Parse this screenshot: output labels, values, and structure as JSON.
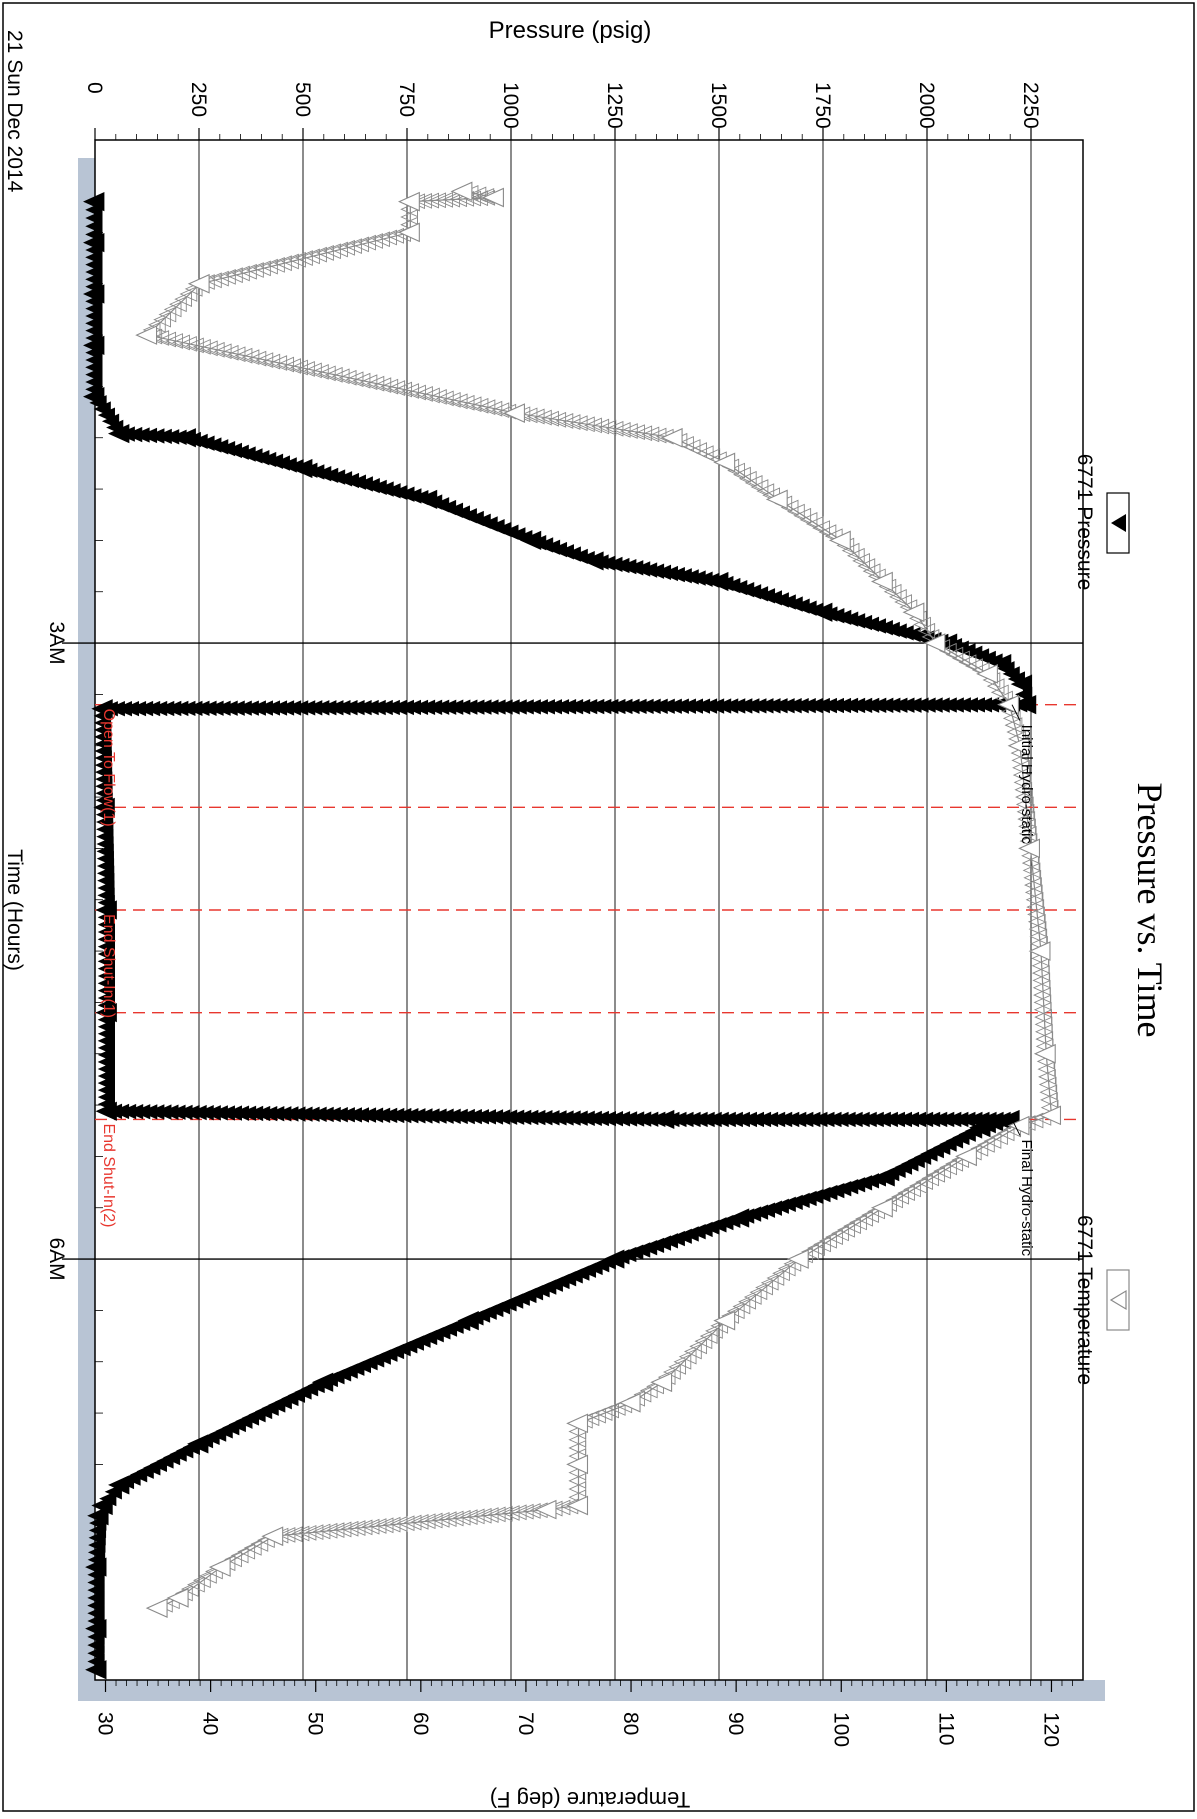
{
  "chart_data": {
    "type": "line",
    "title": "Pressure vs. Time",
    "date_label": "21 Sun Dec 2014",
    "xlabel": "Time (Hours)",
    "ylabel_left": "Pressure (psig)",
    "ylabel_right": "Temperature (deg F)",
    "x_ticks": [
      "3AM",
      "6AM"
    ],
    "pressure_ticks": [
      "0",
      "250",
      "500",
      "750",
      "1000",
      "1250",
      "1500",
      "1750",
      "2000",
      "2250"
    ],
    "temperature_ticks": [
      "30",
      "40",
      "50",
      "60",
      "70",
      "80",
      "90",
      "100",
      "110",
      "120"
    ],
    "pressure_range": [
      0,
      2375
    ],
    "temperature_range": [
      29,
      123
    ],
    "time_range": [
      0.55,
      8.05
    ],
    "grid": true,
    "legend": [
      {
        "name": "6771 Pressure",
        "marker": "filled-triangle",
        "color": "#000000",
        "position": "top-left"
      },
      {
        "name": "6771 Temperature",
        "marker": "open-triangle",
        "color": "#8a8a8a",
        "position": "top-right"
      }
    ],
    "event_lines": [
      {
        "x": 3.3,
        "label": "Open To Flow(1)"
      },
      {
        "x": 3.8,
        "label": ""
      },
      {
        "x": 4.3,
        "label": "End Shut-In(1)"
      },
      {
        "x": 4.8,
        "label": ""
      },
      {
        "x": 5.32,
        "label": "End Shut-In(2)"
      }
    ],
    "event_color": "#e8372f",
    "annotations": [
      {
        "text": "Initial Hydro-static",
        "x": 3.3
      },
      {
        "text": "Final Hydro-static",
        "x": 5.32
      }
    ],
    "series": [
      {
        "name": "6771 Pressure",
        "axis": "pressure",
        "color": "#000000",
        "x": [
          0.85,
          1.05,
          1.3,
          1.55,
          1.8,
          1.98,
          2.0,
          2.15,
          2.3,
          2.5,
          2.6,
          2.7,
          2.85,
          3.0,
          3.1,
          3.2,
          3.3,
          3.32,
          3.8,
          4.3,
          4.8,
          5.28,
          5.32,
          5.32,
          5.36,
          5.6,
          5.8,
          6.0,
          6.3,
          6.6,
          6.9,
          7.1,
          7.2,
          7.25,
          7.5,
          7.8,
          8.0
        ],
        "values": [
          0,
          0,
          0,
          0,
          0,
          60,
          220,
          500,
          800,
          1050,
          1200,
          1500,
          1750,
          2050,
          2180,
          2230,
          2240,
          20,
          25,
          30,
          30,
          30,
          1370,
          2200,
          2130,
          1900,
          1550,
          1250,
          900,
          550,
          250,
          60,
          20,
          10,
          5,
          5,
          5
        ]
      },
      {
        "name": "6771 Temperature",
        "axis": "temperature",
        "color": "#8a8a8a",
        "x": [
          0.8,
          0.83,
          0.85,
          1.0,
          1.25,
          1.5,
          1.88,
          2.0,
          2.12,
          2.3,
          2.5,
          2.7,
          2.85,
          3.0,
          3.15,
          3.3,
          3.5,
          4.0,
          4.5,
          5.0,
          5.3,
          5.35,
          5.5,
          5.75,
          6.0,
          6.3,
          6.6,
          6.7,
          6.8,
          7.0,
          7.2,
          7.22,
          7.35,
          7.5,
          7.65,
          7.7
        ],
        "values": [
          64,
          67,
          59,
          59,
          39,
          34,
          69,
          84,
          89,
          94,
          100,
          104,
          107,
          109,
          114,
          116,
          117,
          118,
          119,
          119.5,
          120,
          117,
          112,
          104,
          96,
          89,
          83,
          80,
          75,
          75,
          75,
          72,
          46,
          41,
          37,
          35
        ]
      }
    ]
  }
}
